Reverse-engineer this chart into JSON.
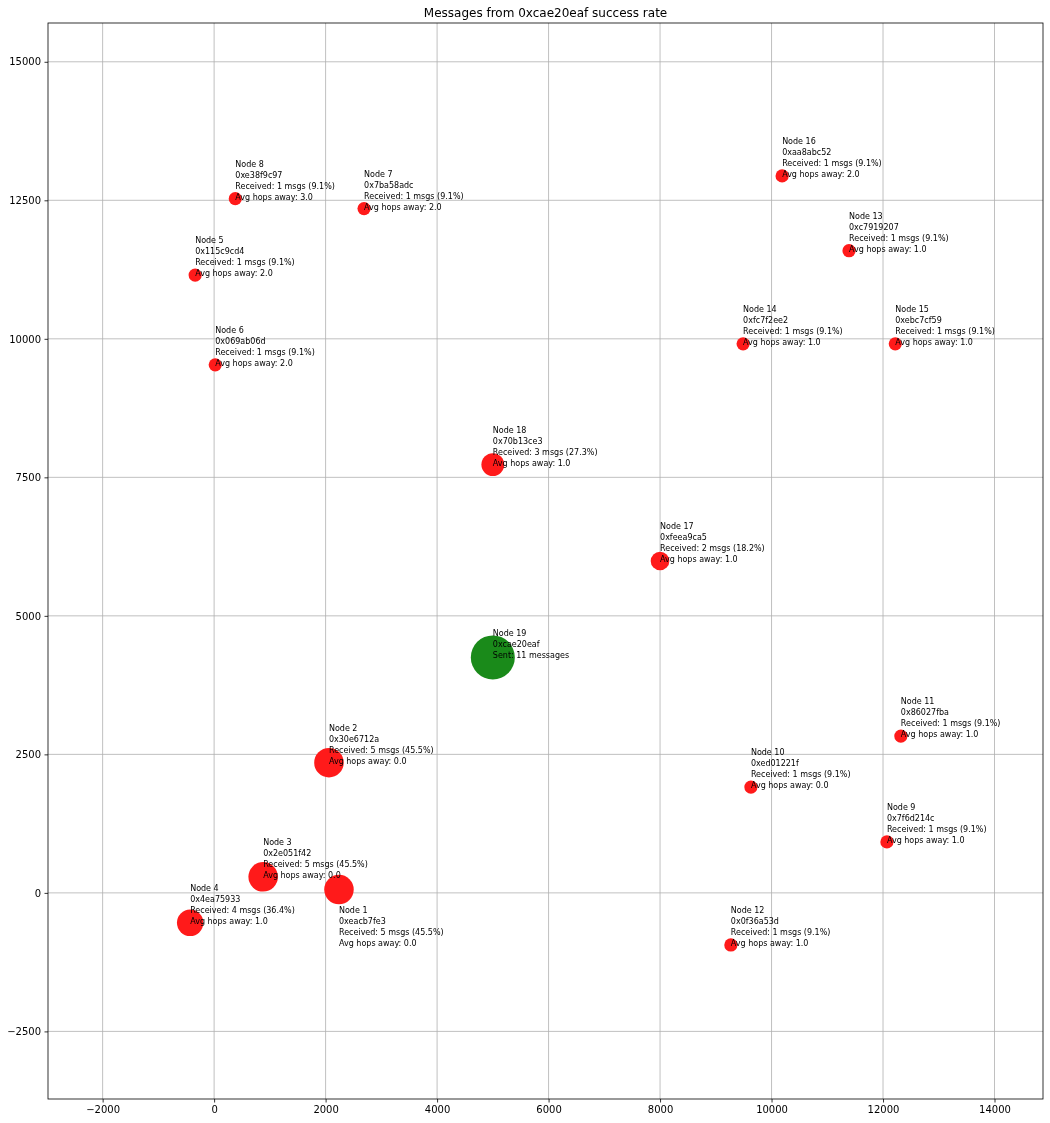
{
  "chart_data": {
    "type": "bubble",
    "title": "Messages from 0xcae20eaf success rate",
    "x": [
      2240,
      2060,
      880,
      -430,
      -340,
      20,
      2690,
      380,
      12070,
      9630,
      12320,
      9270,
      11390,
      9490,
      12220,
      10190,
      8000,
      5000,
      5000
    ],
    "values": [
      60,
      2350,
      290,
      -540,
      11150,
      9530,
      12350,
      12530,
      920,
      1910,
      2830,
      -940,
      11590,
      9910,
      9910,
      12940,
      5990,
      7730,
      4250
    ],
    "sizes": [
      0.45,
      0.45,
      0.45,
      0.36,
      0.09,
      0.09,
      0.09,
      0.09,
      0.09,
      0.09,
      0.09,
      0.09,
      0.09,
      0.09,
      0.09,
      0.09,
      0.18,
      0.27,
      1
    ],
    "colors": [
      "#ff1a1a",
      "#ff1a1a",
      "#ff1a1a",
      "#ff1a1a",
      "#ff1a1a",
      "#ff1a1a",
      "#ff1a1a",
      "#ff1a1a",
      "#ff1a1a",
      "#ff1a1a",
      "#ff1a1a",
      "#ff1a1a",
      "#ff1a1a",
      "#ff1a1a",
      "#ff1a1a",
      "#ff1a1a",
      "#ff1a1a",
      "#ff1a1a",
      "#1a8a1a"
    ],
    "marker": "circle",
    "xlim": [
      -2980,
      14870
    ],
    "ylim": [
      -3720,
      15700
    ],
    "xticks": [
      {
        "value": -2000,
        "label": "−2000"
      },
      0,
      2000,
      4000,
      6000,
      8000,
      10000,
      12000,
      14000
    ],
    "yticks": [
      {
        "value": -2500,
        "label": "−2500"
      },
      0,
      2500,
      5000,
      7500,
      10000,
      12500,
      15000
    ],
    "grid": true,
    "annotations": [
      {
        "text": "Node 1\n0xeacb7fe3\nReceived: 5 msgs (45.5%)\nAvg hops away: 0.0",
        "x": 2240,
        "y": 60
      },
      {
        "text": "Node 2\n0x30e6712a\nReceived: 5 msgs (45.5%)\nAvg hops away: 0.0",
        "x": 2060,
        "y": 2350
      },
      {
        "text": "Node 3\n0x2e051f42\nReceived: 5 msgs (45.5%)\nAvg hops away: 0.0",
        "x": 880,
        "y": 290
      },
      {
        "text": "Node 4\n0x4ea75933\nReceived: 4 msgs (36.4%)\nAvg hops away: 1.0",
        "x": -430,
        "y": -540
      },
      {
        "text": "Node 5\n0x115c9cd4\nReceived: 1 msgs (9.1%)\nAvg hops away: 2.0",
        "x": -340,
        "y": 11150
      },
      {
        "text": "Node 6\n0x069ab06d\nReceived: 1 msgs (9.1%)\nAvg hops away: 2.0",
        "x": 20,
        "y": 9530
      },
      {
        "text": "Node 7\n0x7ba58adc\nReceived: 1 msgs (9.1%)\nAvg hops away: 2.0",
        "x": 2690,
        "y": 12350
      },
      {
        "text": "Node 8\n0xe38f9c97\nReceived: 1 msgs (9.1%)\nAvg hops away: 3.0",
        "x": 380,
        "y": 12530
      },
      {
        "text": "Node 9\n0x7f6d214c\nReceived: 1 msgs (9.1%)\nAvg hops away: 1.0",
        "x": 12070,
        "y": 920
      },
      {
        "text": "Node 10\n0xed01221f\nReceived: 1 msgs (9.1%)\nAvg hops away: 0.0",
        "x": 9630,
        "y": 1910
      },
      {
        "text": "Node 11\n0x86027fba\nReceived: 1 msgs (9.1%)\nAvg hops away: 1.0",
        "x": 12320,
        "y": 2830
      },
      {
        "text": "Node 12\n0x0f36a53d\nReceived: 1 msgs (9.1%)\nAvg hops away: 1.0",
        "x": 9270,
        "y": -940
      },
      {
        "text": "Node 13\n0xc7919207\nReceived: 1 msgs (9.1%)\nAvg hops away: 1.0",
        "x": 11390,
        "y": 11590
      },
      {
        "text": "Node 14\n0xfc7f2ee2\nReceived: 1 msgs (9.1%)\nAvg hops away: 1.0",
        "x": 9490,
        "y": 9910
      },
      {
        "text": "Node 15\n0xebc7cf59\nReceived: 1 msgs (9.1%)\nAvg hops away: 1.0",
        "x": 12220,
        "y": 9910
      },
      {
        "text": "Node 16\n0xaa8abc52\nReceived: 1 msgs (9.1%)\nAvg hops away: 2.0",
        "x": 10190,
        "y": 12940
      },
      {
        "text": "Node 17\n0xfeea9ca5\nReceived: 2 msgs (18.2%)\nAvg hops away: 1.0",
        "x": 8000,
        "y": 5990
      },
      {
        "text": "Node 18\n0x70b13ce3\nReceived: 3 msgs (27.3%)\nAvg hops away: 1.0",
        "x": 5000,
        "y": 7730
      },
      {
        "text": "Node 19\n0xcae20eaf\nSent: 11 messages",
        "x": 5000,
        "y": 4250
      }
    ]
  }
}
